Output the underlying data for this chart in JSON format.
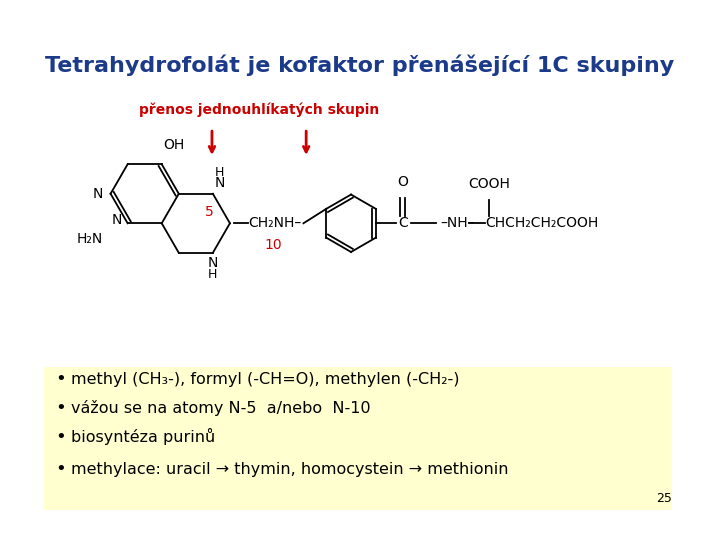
{
  "title": "Tetrahydrofolát je kofaktor přenášející 1C skupiny",
  "title_color": "#1C3A8A",
  "title_fontsize": 16,
  "bg_color": "#FFFFFF",
  "box_color": "#FFFFD0",
  "red_label": "přenos jednouhlíkatých skupin",
  "red_label_color": "#CC0000",
  "bullet_items": [
    "methyl (CH₃-), formyl (-CH=O), methylen (-CH₂-)",
    "vážou se na atomy N-5  a/nebo  N-10",
    "biosyntéza purinů",
    "methylace: uracil → thymin, homocystein → methionin"
  ],
  "bullet_fontsize": 11.5,
  "page_num": "25"
}
